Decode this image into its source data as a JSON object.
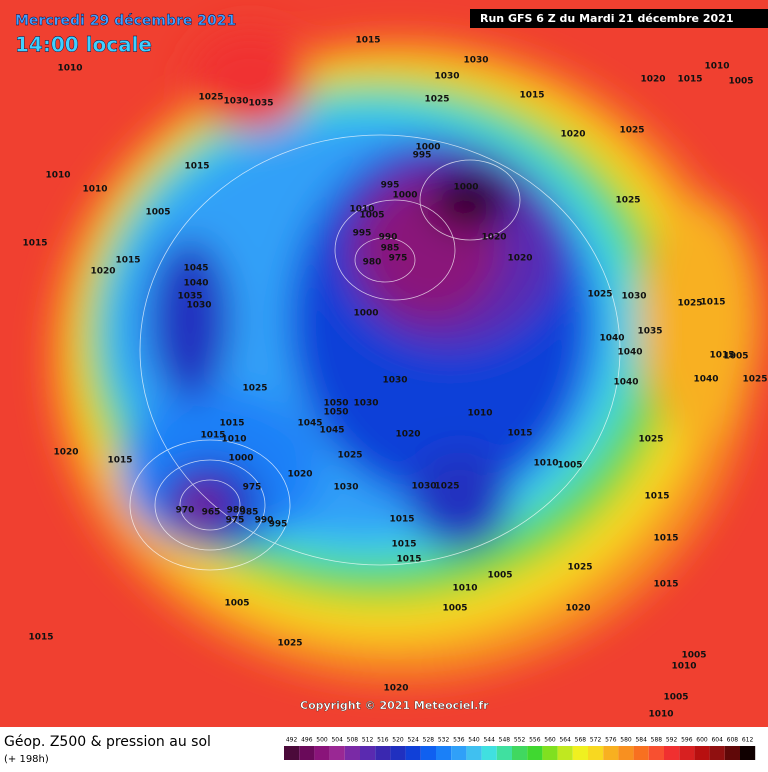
{
  "header": {
    "date": "Mercredi 29 décembre 2021",
    "time": "14:00 locale",
    "run": "Run GFS 6 Z du Mardi 21 décembre 2021"
  },
  "footer": {
    "title": "Géop. Z500 & pression au sol",
    "lead": "(+ 198h)",
    "copyright": "Copyright © 2021 Meteociel.fr"
  },
  "isobar_labels": [
    1015,
    1030,
    1030,
    1015,
    1025,
    1020,
    1015,
    1010,
    1005,
    1010,
    1025,
    1030,
    1035,
    1015,
    1010,
    1010,
    1005,
    1015,
    1015,
    1020,
    1045,
    1040,
    1035,
    1030,
    1020,
    1025,
    1000,
    995,
    995,
    1000,
    1000,
    1010,
    1005,
    995,
    990,
    985,
    980,
    975,
    1025,
    1020,
    1020,
    1025,
    1030,
    1025,
    1015,
    1000,
    1040,
    1040,
    1035,
    1015,
    1005,
    1040,
    1025,
    1040,
    1030,
    1025,
    1050,
    1050,
    1030,
    1045,
    1045,
    1010,
    1015,
    1015,
    1010,
    1020,
    1015,
    1025,
    1020,
    1015,
    1000,
    1025,
    1020,
    1030,
    1010,
    1005,
    1030,
    1025,
    1015,
    975,
    970,
    965,
    980,
    975,
    985,
    990,
    995,
    1015,
    1015,
    1015,
    1015,
    1025,
    1010,
    1005,
    1005,
    1020,
    1015,
    1005,
    1015,
    1025,
    1005,
    1010,
    1020,
    1005,
    1010
  ],
  "colorbar": {
    "values": [
      492,
      496,
      500,
      504,
      508,
      512,
      516,
      520,
      524,
      528,
      532,
      536,
      540,
      544,
      548,
      552,
      556,
      560,
      564,
      568,
      572,
      576,
      580,
      584,
      588,
      592,
      596,
      600,
      604,
      608,
      612
    ],
    "colors": [
      "#4b0a3a",
      "#6a0a5a",
      "#8a147a",
      "#9a2894",
      "#7a2aa6",
      "#5a2ab0",
      "#3a28b0",
      "#2030c0",
      "#1040d8",
      "#1060f0",
      "#1a80f8",
      "#30a0f8",
      "#40c0f0",
      "#40e0e0",
      "#40e0a0",
      "#40d860",
      "#40d830",
      "#80e020",
      "#c0e820",
      "#f0f020",
      "#f8d820",
      "#f8b020",
      "#f89020",
      "#f87020",
      "#f85030",
      "#f03030",
      "#d82020",
      "#b81010",
      "#901010",
      "#600808",
      "#100000"
    ]
  }
}
